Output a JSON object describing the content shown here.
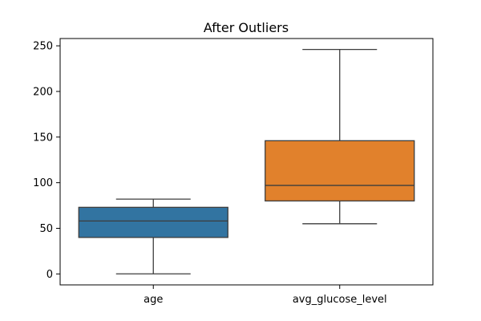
{
  "chart_data": {
    "type": "box",
    "title": "After Outliers",
    "xlabel": "",
    "ylabel": "",
    "ylim": [
      -12,
      258
    ],
    "yticks": [
      0,
      50,
      100,
      150,
      200,
      250
    ],
    "grid": false,
    "categories": [
      "age",
      "avg_glucose_level"
    ],
    "boxes": [
      {
        "name": "age",
        "color": "#3274a1",
        "whislo": 0.08,
        "q1": 40,
        "med": 58,
        "q3": 73,
        "whishi": 82
      },
      {
        "name": "avg_glucose_level",
        "color": "#e1812c",
        "whislo": 55,
        "q1": 80,
        "med": 97,
        "q3": 146,
        "whishi": 246
      }
    ]
  }
}
